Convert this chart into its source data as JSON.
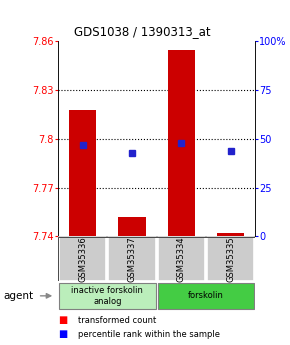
{
  "title": "GDS1038 / 1390313_at",
  "samples": [
    "GSM35336",
    "GSM35337",
    "GSM35334",
    "GSM35335"
  ],
  "bar_values": [
    7.818,
    7.752,
    7.855,
    7.742
  ],
  "bar_base": 7.74,
  "percentile_values": [
    47,
    43,
    48,
    44
  ],
  "ylim_left": [
    7.74,
    7.86
  ],
  "ylim_right": [
    0,
    100
  ],
  "yticks_left": [
    7.74,
    7.77,
    7.8,
    7.83,
    7.86
  ],
  "yticks_right": [
    0,
    25,
    50,
    75,
    100
  ],
  "ytick_labels_left": [
    "7.74",
    "7.77",
    "7.8",
    "7.83",
    "7.86"
  ],
  "ytick_labels_right": [
    "0",
    "25",
    "50",
    "75",
    "100%"
  ],
  "hlines": [
    7.77,
    7.8,
    7.83
  ],
  "bar_color": "#cc0000",
  "dot_color": "#2222cc",
  "agent_groups": [
    {
      "label": "inactive forskolin\nanalog",
      "color": "#bbeebb",
      "cols": [
        0,
        1
      ]
    },
    {
      "label": "forskolin",
      "color": "#44cc44",
      "cols": [
        2,
        3
      ]
    }
  ],
  "background_color": "#ffffff",
  "sample_box_color": "#cccccc"
}
